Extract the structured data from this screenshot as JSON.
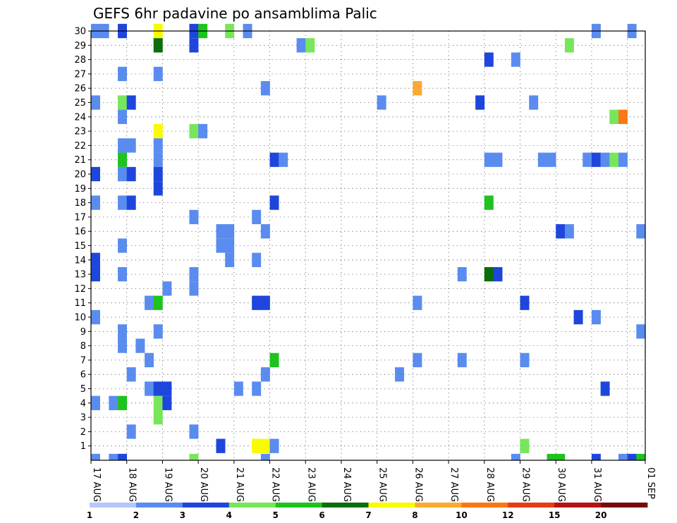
{
  "chart_data": {
    "type": "heatmap",
    "title": "GEFS 6hr padavine po ansamblima Palic",
    "xlabel": "",
    "ylabel": "",
    "x_tick_labels": [
      "17 AUG",
      "18 AUG",
      "19 AUG",
      "20 AUG",
      "21 AUG",
      "22 AUG",
      "23 AUG",
      "24 AUG",
      "25 AUG",
      "26 AUG",
      "27 AUG",
      "28 AUG",
      "29 AUG",
      "30 AUG",
      "31 AUG",
      "01 SEP"
    ],
    "y_tick_labels": [
      "1",
      "2",
      "3",
      "4",
      "5",
      "6",
      "7",
      "8",
      "9",
      "10",
      "11",
      "12",
      "13",
      "14",
      "15",
      "16",
      "17",
      "18",
      "19",
      "20",
      "21",
      "22",
      "23",
      "24",
      "25",
      "26",
      "27",
      "28",
      "29",
      "30"
    ],
    "x_range_steps_6h": [
      0,
      61
    ],
    "y_range_members": [
      0,
      30
    ],
    "grid": true,
    "colorbar": {
      "position": "bottom",
      "labels": [
        "1",
        "2",
        "3",
        "4",
        "5",
        "6",
        "7",
        "8",
        "10",
        "12",
        "15",
        "20"
      ],
      "colors": [
        "#b4c8fa",
        "#5a8cf0",
        "#1e46dc",
        "#78e65a",
        "#1ec31e",
        "#0a6e0a",
        "#fafa00",
        "#faaa32",
        "#fa7814",
        "#e63c14",
        "#b41414",
        "#780a0a"
      ]
    },
    "cells": [
      [
        0,
        30,
        1
      ],
      [
        1,
        30,
        1
      ],
      [
        3,
        30,
        2
      ],
      [
        7,
        30,
        6
      ],
      [
        11,
        30,
        2
      ],
      [
        12,
        30,
        4
      ],
      [
        15,
        30,
        3
      ],
      [
        17,
        30,
        1
      ],
      [
        56,
        30,
        1
      ],
      [
        60,
        30,
        1
      ],
      [
        7,
        29,
        5
      ],
      [
        11,
        29,
        2
      ],
      [
        23,
        29,
        1
      ],
      [
        24,
        29,
        3
      ],
      [
        53,
        29,
        3
      ],
      [
        44,
        28,
        2
      ],
      [
        47,
        28,
        1
      ],
      [
        3,
        27,
        1
      ],
      [
        7,
        27,
        1
      ],
      [
        19,
        26,
        1
      ],
      [
        36,
        26,
        7
      ],
      [
        0,
        25,
        1
      ],
      [
        3,
        25,
        3
      ],
      [
        4,
        25,
        2
      ],
      [
        32,
        25,
        1
      ],
      [
        43,
        25,
        2
      ],
      [
        49,
        25,
        1
      ],
      [
        3,
        24,
        1
      ],
      [
        58,
        24,
        3
      ],
      [
        59,
        24,
        8
      ],
      [
        7,
        23,
        6
      ],
      [
        11,
        23,
        3
      ],
      [
        12,
        23,
        1
      ],
      [
        3,
        22,
        1
      ],
      [
        4,
        22,
        1
      ],
      [
        7,
        22,
        1
      ],
      [
        3,
        21,
        4
      ],
      [
        7,
        21,
        1
      ],
      [
        20,
        21,
        2
      ],
      [
        21,
        21,
        1
      ],
      [
        44,
        21,
        1
      ],
      [
        45,
        21,
        1
      ],
      [
        50,
        21,
        1
      ],
      [
        51,
        21,
        1
      ],
      [
        55,
        21,
        1
      ],
      [
        56,
        21,
        2
      ],
      [
        57,
        21,
        1
      ],
      [
        58,
        21,
        3
      ],
      [
        59,
        21,
        1
      ],
      [
        0,
        20,
        2
      ],
      [
        3,
        20,
        1
      ],
      [
        4,
        20,
        2
      ],
      [
        7,
        20,
        2
      ],
      [
        7,
        19,
        2
      ],
      [
        0,
        18,
        1
      ],
      [
        3,
        18,
        1
      ],
      [
        4,
        18,
        2
      ],
      [
        20,
        18,
        2
      ],
      [
        44,
        18,
        4
      ],
      [
        11,
        17,
        1
      ],
      [
        18,
        17,
        1
      ],
      [
        14,
        16,
        1
      ],
      [
        15,
        16,
        1
      ],
      [
        19,
        16,
        1
      ],
      [
        52,
        16,
        2
      ],
      [
        53,
        16,
        1
      ],
      [
        61,
        16,
        1
      ],
      [
        3,
        15,
        1
      ],
      [
        14,
        15,
        1
      ],
      [
        15,
        15,
        1
      ],
      [
        0,
        14,
        2
      ],
      [
        15,
        14,
        1
      ],
      [
        18,
        14,
        1
      ],
      [
        0,
        13,
        2
      ],
      [
        3,
        13,
        1
      ],
      [
        11,
        13,
        1
      ],
      [
        41,
        13,
        1
      ],
      [
        44,
        13,
        5
      ],
      [
        45,
        13,
        2
      ],
      [
        8,
        12,
        1
      ],
      [
        11,
        12,
        1
      ],
      [
        6,
        11,
        1
      ],
      [
        7,
        11,
        4
      ],
      [
        18,
        11,
        2
      ],
      [
        19,
        11,
        2
      ],
      [
        36,
        11,
        1
      ],
      [
        48,
        11,
        2
      ],
      [
        0,
        10,
        1
      ],
      [
        54,
        10,
        2
      ],
      [
        56,
        10,
        1
      ],
      [
        3,
        9,
        1
      ],
      [
        7,
        9,
        1
      ],
      [
        61,
        9,
        1
      ],
      [
        3,
        8,
        1
      ],
      [
        5,
        8,
        1
      ],
      [
        6,
        7,
        1
      ],
      [
        20,
        7,
        4
      ],
      [
        36,
        7,
        1
      ],
      [
        41,
        7,
        1
      ],
      [
        48,
        7,
        1
      ],
      [
        4,
        6,
        1
      ],
      [
        19,
        6,
        1
      ],
      [
        34,
        6,
        1
      ],
      [
        6,
        5,
        1
      ],
      [
        7,
        5,
        2
      ],
      [
        8,
        5,
        2
      ],
      [
        16,
        5,
        1
      ],
      [
        18,
        5,
        1
      ],
      [
        57,
        5,
        2
      ],
      [
        0,
        4,
        1
      ],
      [
        2,
        4,
        1
      ],
      [
        3,
        4,
        4
      ],
      [
        7,
        4,
        3
      ],
      [
        8,
        4,
        2
      ],
      [
        7,
        3,
        3
      ],
      [
        4,
        2,
        1
      ],
      [
        11,
        2,
        1
      ],
      [
        14,
        1,
        2
      ],
      [
        18,
        1,
        6
      ],
      [
        19,
        1,
        6
      ],
      [
        20,
        1,
        1
      ],
      [
        48,
        1,
        3
      ],
      [
        0,
        0,
        1
      ],
      [
        2,
        0,
        1
      ],
      [
        3,
        0,
        2
      ],
      [
        11,
        0,
        3
      ],
      [
        19,
        0,
        1
      ],
      [
        47,
        0,
        1
      ],
      [
        51,
        0,
        4
      ],
      [
        52,
        0,
        4
      ],
      [
        56,
        0,
        2
      ],
      [
        59,
        0,
        1
      ],
      [
        60,
        0,
        2
      ],
      [
        61,
        0,
        4
      ]
    ]
  }
}
